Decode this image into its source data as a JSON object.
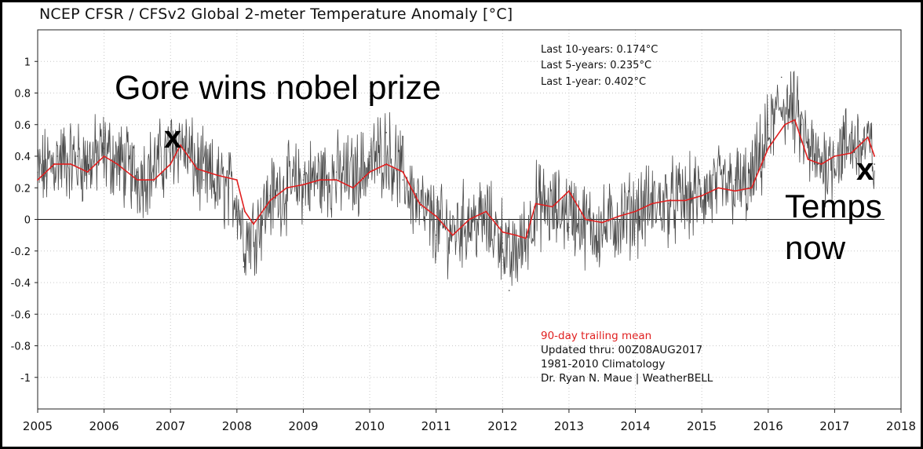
{
  "title": "NCEP CFSR / CFSv2 Global 2-meter Temperature Anomaly [°C]",
  "stats": [
    "Last 10-years: 0.174°C",
    "Last 5-years: 0.235°C",
    "Last 1-year:  0.402°C"
  ],
  "legend_mean": "90-day trailing mean",
  "info_lines": [
    "Updated thru: 00Z08AUG2017",
    "1981-2010 Climatology",
    "Dr. Ryan N. Maue | WeatherBELL"
  ],
  "annotations": {
    "gore": "Gore wins nobel prize",
    "x_marker": "x",
    "temps_now_1": "Temps",
    "temps_now_2": "now"
  },
  "colors": {
    "daily": "#4a4a4a",
    "mean": "#e02020",
    "grid": "#c8c8c8",
    "legend_text": "#e02020"
  },
  "chart_data": {
    "type": "line",
    "xlim": [
      2005,
      2018
    ],
    "ylim": [
      -1.2,
      1.2
    ],
    "x_ticks": [
      2005,
      2006,
      2007,
      2008,
      2009,
      2010,
      2011,
      2012,
      2013,
      2014,
      2015,
      2016,
      2017,
      2018
    ],
    "y_ticks": [
      1,
      0.8,
      0.6,
      0.4,
      0.2,
      0,
      -0.2,
      -0.4,
      -0.6,
      -0.8,
      -1
    ],
    "series": [
      {
        "style": "daily-noisy",
        "note_style": "thin gray daily anomaly line with high-frequency noise around the trailing mean",
        "x": [
          2005.0,
          2005.3,
          2005.6,
          2006.0,
          2006.5,
          2007.0,
          2007.1,
          2007.5,
          2008.0,
          2008.1,
          2008.5,
          2009.0,
          2009.5,
          2010.0,
          2010.25,
          2010.5,
          2010.75,
          2011.0,
          2011.5,
          2012.0,
          2012.1,
          2012.5,
          2013.0,
          2013.5,
          2014.0,
          2014.5,
          2015.0,
          2015.5,
          2015.7,
          2016.0,
          2016.2,
          2016.5,
          2016.75,
          2017.0,
          2017.25,
          2017.6
        ],
        "values": [
          0.3,
          0.4,
          0.4,
          0.45,
          0.3,
          0.5,
          0.55,
          0.25,
          0.05,
          -0.3,
          0.15,
          0.25,
          0.3,
          0.4,
          0.55,
          0.25,
          0.05,
          -0.1,
          0.0,
          -0.15,
          -0.45,
          0.1,
          -0.05,
          -0.1,
          0.05,
          0.1,
          0.15,
          0.25,
          0.2,
          0.6,
          0.9,
          0.6,
          0.35,
          0.4,
          0.55,
          0.35
        ]
      },
      {
        "style": "mean",
        "x": [
          2005.0,
          2005.25,
          2005.5,
          2005.75,
          2006.0,
          2006.2,
          2006.5,
          2006.75,
          2007.0,
          2007.15,
          2007.4,
          2007.7,
          2008.0,
          2008.12,
          2008.25,
          2008.5,
          2008.75,
          2009.0,
          2009.25,
          2009.5,
          2009.75,
          2010.0,
          2010.25,
          2010.5,
          2010.75,
          2011.0,
          2011.25,
          2011.5,
          2011.75,
          2012.0,
          2012.2,
          2012.35,
          2012.5,
          2012.75,
          2013.0,
          2013.25,
          2013.5,
          2013.75,
          2014.0,
          2014.25,
          2014.5,
          2014.75,
          2015.0,
          2015.25,
          2015.5,
          2015.75,
          2016.0,
          2016.25,
          2016.4,
          2016.6,
          2016.8,
          2017.0,
          2017.25,
          2017.5,
          2017.6
        ],
        "values": [
          0.25,
          0.35,
          0.35,
          0.3,
          0.4,
          0.35,
          0.25,
          0.25,
          0.35,
          0.47,
          0.32,
          0.28,
          0.25,
          0.05,
          -0.03,
          0.12,
          0.2,
          0.22,
          0.25,
          0.25,
          0.2,
          0.3,
          0.35,
          0.3,
          0.1,
          0.02,
          -0.1,
          0.0,
          0.05,
          -0.08,
          -0.1,
          -0.12,
          0.1,
          0.08,
          0.18,
          0.0,
          -0.02,
          0.02,
          0.05,
          0.1,
          0.12,
          0.12,
          0.15,
          0.2,
          0.18,
          0.2,
          0.45,
          0.6,
          0.63,
          0.38,
          0.35,
          0.4,
          0.42,
          0.52,
          0.4
        ]
      }
    ]
  }
}
